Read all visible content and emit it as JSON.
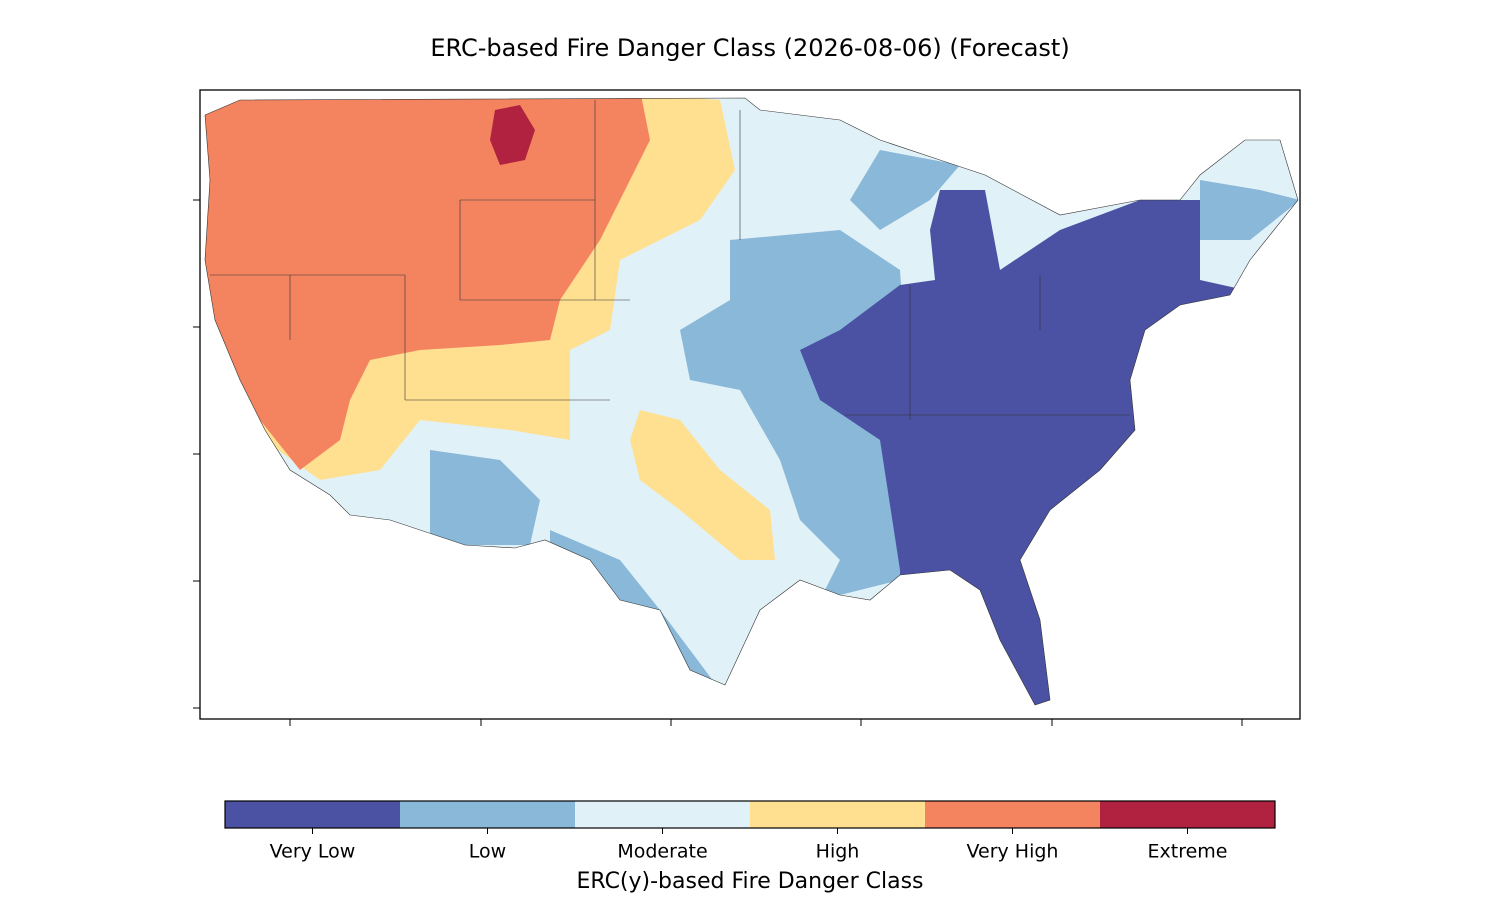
{
  "title": "ERC-based Fire Danger Class (2026-08-06) (Forecast)",
  "colorbar": {
    "label": "ERC(y)-based Fire Danger Class",
    "classes": [
      {
        "label": "Very Low",
        "color": "#4b52a3"
      },
      {
        "label": "Low",
        "color": "#8ab8d8"
      },
      {
        "label": "Moderate",
        "color": "#e1f1f8"
      },
      {
        "label": "High",
        "color": "#fee090"
      },
      {
        "label": "Very High",
        "color": "#f4845f"
      },
      {
        "label": "Extreme",
        "color": "#b0223f"
      }
    ]
  }
}
